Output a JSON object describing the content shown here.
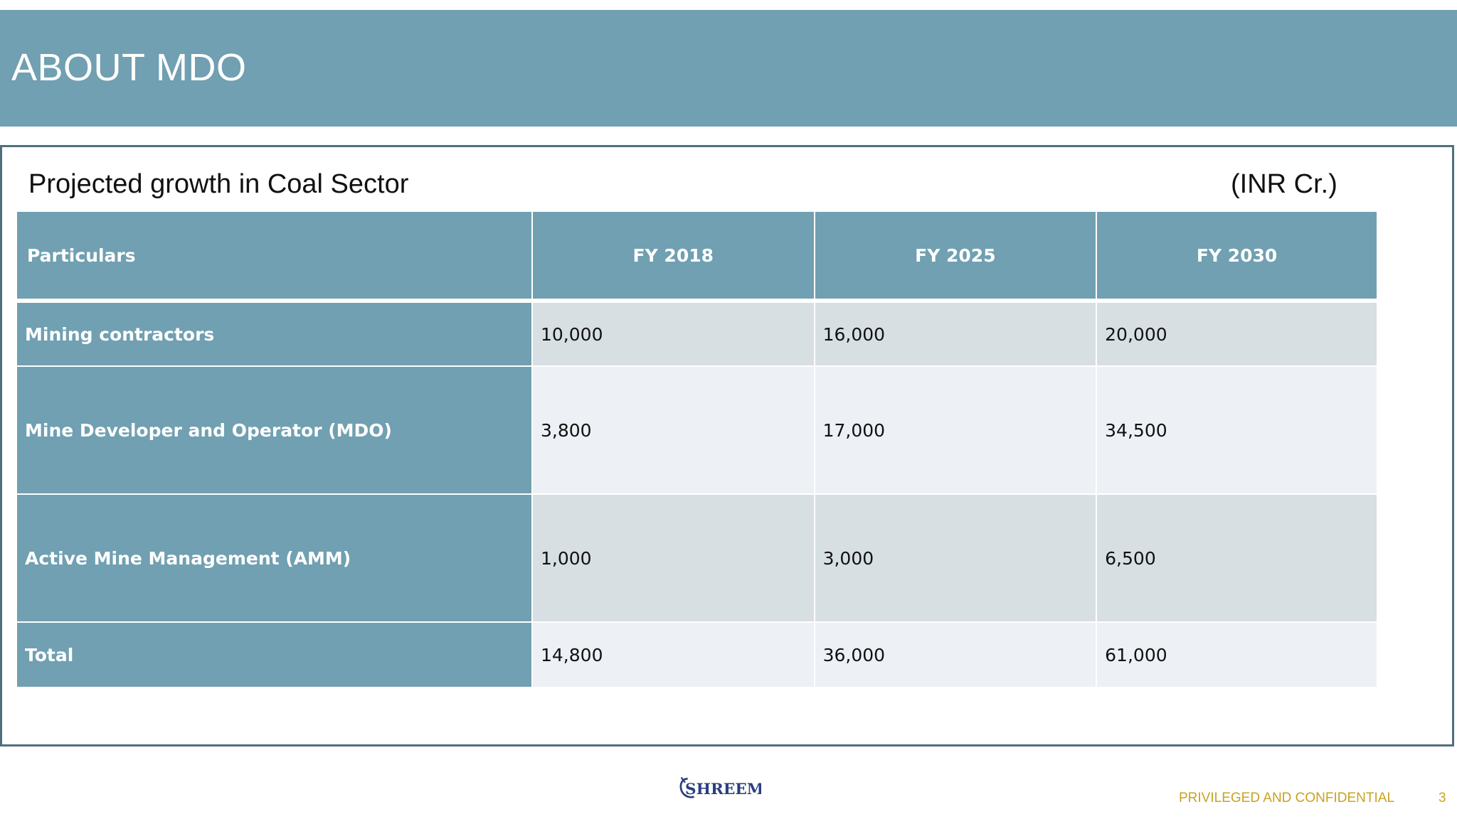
{
  "header": {
    "title": "ABOUT MDO"
  },
  "section": {
    "heading": "Projected growth in Coal Sector",
    "unit": "(INR Cr.)"
  },
  "table": {
    "columns": [
      "Particulars",
      "FY 2018",
      "FY 2025",
      "FY 2030"
    ],
    "rows": [
      {
        "label": "Mining contractors",
        "values": [
          "10,000",
          "16,000",
          "20,000"
        ]
      },
      {
        "label": "Mine Developer and Operator (MDO)",
        "values": [
          "3,800",
          "17,000",
          "34,500"
        ]
      },
      {
        "label": "Active Mine Management (AMM)",
        "values": [
          "1,000",
          "3,000",
          "6,500"
        ]
      },
      {
        "label": "Total",
        "values": [
          "14,800",
          "36,000",
          "61,000"
        ]
      }
    ]
  },
  "footer": {
    "logo_text": "SHREEM",
    "confidential": "PRIVILEGED AND CONFIDENTIAL",
    "page_number": "3"
  },
  "colors": {
    "accent": "#70a0b1",
    "frame": "#4f6f7d",
    "footer_text": "#c8a31f",
    "logo": "#2a3f7e"
  },
  "icons": {
    "logo": "shreem-logo-icon"
  }
}
